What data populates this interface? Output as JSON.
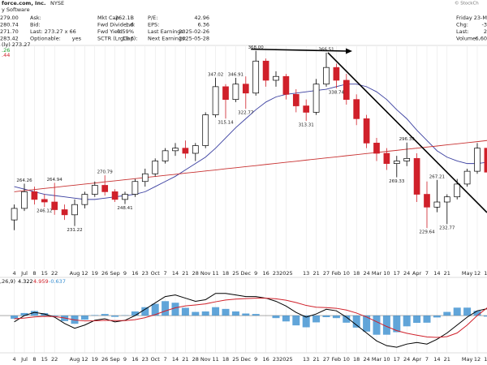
{
  "header": {
    "title": "force.com, Inc.",
    "exchange": "NYSE",
    "sector": "y Software",
    "copyright": "© StockCh",
    "rows": [
      [
        "279.00",
        "Ask:",
        "",
        "Mkt Cap:",
        "262.1B",
        "P/E:",
        "42.96",
        "Friday 23-Ma",
        ""
      ],
      [
        "280.74",
        "Bid:",
        "",
        "Fwd Dividend:",
        "1.6",
        "EPS:",
        "6.36",
        "Chg:",
        "-3"
      ],
      [
        "271.70",
        "Last: 273.27 x 66",
        "",
        "Fwd Yield:",
        "0.59%",
        "Last Earnings:",
        "2025-02-26",
        "Last:",
        "2"
      ],
      [
        "283.42",
        "Optionable:",
        "yes",
        "SCTR (LrgCap):",
        "18.6",
        "Next Earnings:",
        "2025-05-28",
        "Volume:",
        "6,60"
      ]
    ],
    "overlay_texts": [
      "(ly) 273.27",
      ".26",
      ".44"
    ]
  },
  "chart_data": [
    {
      "type": "candlestick",
      "categories": [
        "4",
        "Jul",
        "8",
        "15",
        "22",
        null,
        "Aug",
        "12",
        "19",
        "26",
        "Sep",
        "9",
        "16",
        "23",
        "Oct",
        "7",
        "14",
        "21",
        "28",
        "Nov",
        "11",
        "18",
        "25",
        "Dec",
        "9",
        "16",
        "23",
        "2025",
        null,
        "13",
        "21",
        "27",
        "Feb",
        "10",
        "18",
        "24",
        "Mar",
        "10",
        "17",
        "24",
        "Apr",
        "7",
        "14",
        "21",
        null,
        "May",
        "12",
        "19"
      ],
      "open": [
        236,
        245,
        258,
        252,
        250,
        244,
        240,
        248,
        256,
        263,
        258,
        252,
        256,
        266,
        272,
        282,
        290,
        292,
        288,
        294,
        318,
        340,
        330,
        342,
        335,
        360,
        345,
        348,
        334,
        325,
        320,
        342,
        355,
        345,
        330,
        315,
        296,
        288,
        280,
        282,
        284,
        256,
        246,
        250,
        254,
        264,
        274,
        292
      ],
      "high": [
        248,
        264.26,
        262,
        256,
        264.94,
        248,
        252,
        258,
        266,
        270.79,
        260,
        258,
        268,
        276,
        284,
        292,
        296,
        298,
        296,
        320,
        347.02,
        342,
        346.91,
        348,
        368,
        362,
        352,
        350,
        338,
        330,
        346,
        366.51,
        358,
        350,
        334,
        318,
        300,
        292,
        286,
        296.39,
        288,
        266,
        267.21,
        256,
        268,
        276,
        296,
        294
      ],
      "low": [
        228,
        243,
        248,
        246.12,
        240,
        236,
        231.22,
        245,
        254,
        255,
        250,
        248.41,
        254,
        262,
        270,
        280,
        286,
        284,
        282,
        292,
        316,
        315.14,
        328,
        322.77,
        333,
        340,
        340,
        330,
        320,
        313.31,
        318,
        340,
        338.74,
        326,
        310,
        292,
        282,
        275,
        269.33,
        278,
        250,
        229.64,
        242,
        232.77,
        252,
        262,
        272,
        270
      ],
      "close": [
        245,
        258,
        252,
        250,
        244,
        240,
        248,
        256,
        263,
        258,
        252,
        256,
        266,
        272,
        282,
        290,
        292,
        288,
        294,
        318,
        340,
        330,
        342,
        335,
        360,
        345,
        348,
        334,
        325,
        320,
        342,
        355,
        345,
        330,
        315,
        296,
        288,
        280,
        282,
        284,
        256,
        246,
        250,
        254,
        264,
        274,
        292,
        273.27
      ],
      "up_color": "#000000",
      "down_color": "#d0202a",
      "series": [
        {
          "color": "#3a3fa0",
          "values": [
            262,
            260,
            258,
            256,
            255,
            254,
            253,
            252,
            252,
            253,
            254,
            255,
            256,
            258,
            262,
            266,
            270,
            275,
            280,
            285,
            292,
            300,
            308,
            315,
            322,
            328,
            332,
            334,
            335,
            336,
            337,
            338,
            340,
            342,
            342,
            340,
            336,
            330,
            322,
            315,
            306,
            298,
            290,
            285,
            282,
            280,
            280,
            281
          ]
        },
        {
          "color": "#c83232",
          "values": [
            258,
            258.9,
            259.7,
            260.6,
            261.4,
            262.3,
            263.1,
            264,
            264.8,
            265.7,
            266.5,
            267.4,
            268.2,
            269.1,
            269.9,
            270.8,
            271.6,
            272.5,
            273.3,
            274.2,
            275,
            275.9,
            276.7,
            277.6,
            278.4,
            279.3,
            280.1,
            281,
            281.8,
            282.7,
            283.5,
            284.4,
            285.2,
            286.1,
            286.9,
            287.8,
            288.6,
            289.5,
            290.3,
            291.2,
            292,
            292.9,
            293.7,
            294.6,
            295.4,
            296.3,
            297.1,
            298
          ]
        }
      ],
      "annotations": [
        {
          "value": 264.26,
          "label": "264.26"
        },
        {
          "value": 246.12,
          "label": "246.12"
        },
        {
          "value": 264.94,
          "label": "264.94"
        },
        {
          "value": 231.22,
          "label": "231.22"
        },
        {
          "value": 270.79,
          "label": "270.79"
        },
        {
          "value": 248.41,
          "label": "248.41"
        },
        {
          "value": 347.02,
          "label": "347.02"
        },
        {
          "value": 315.14,
          "label": "315.14"
        },
        {
          "value": 346.91,
          "label": "346.91"
        },
        {
          "value": 322.77,
          "label": "322.77"
        },
        {
          "value": 368,
          "label": "368.00"
        },
        {
          "value": 313.31,
          "label": "313.31"
        },
        {
          "value": 366.51,
          "label": "366.51"
        },
        {
          "value": 338.74,
          "label": "338.74"
        },
        {
          "value": 269.33,
          "label": "269.33"
        },
        {
          "value": 296.39,
          "label": "296.39"
        },
        {
          "value": 229.64,
          "label": "229.64"
        },
        {
          "value": 267.21,
          "label": "267.21"
        },
        {
          "value": 232.77,
          "label": "232.77"
        }
      ],
      "ylim": [
        200,
        376
      ]
    },
    {
      "type": "macd",
      "label": ",26,9)",
      "value_texts": [
        "4.322",
        "4.959",
        "-0.637"
      ],
      "series": [
        {
          "color": "#000000",
          "values": [
            -4,
            0,
            2,
            1,
            -1,
            -5,
            -8,
            -6,
            -3,
            -2,
            -4,
            -3,
            0,
            4,
            8,
            12,
            13,
            11,
            9,
            10,
            14,
            14,
            13,
            12,
            12,
            11,
            9,
            6,
            2,
            -1,
            1,
            4,
            3,
            -1,
            -6,
            -11,
            -16,
            -19,
            -20,
            -18,
            -17,
            -18,
            -15,
            -11,
            -6,
            -1,
            3,
            4.322
          ]
        },
        {
          "color": "#d0202a",
          "values": [
            -2,
            -1.6,
            -0.9,
            -0.5,
            -0.6,
            -1.5,
            -2.8,
            -3.4,
            -3.3,
            -3,
            -3.2,
            -3.2,
            -2.6,
            -1.3,
            0.6,
            2.9,
            4.9,
            6.1,
            6.7,
            7.4,
            8.7,
            9.8,
            10.4,
            10.7,
            11,
            11,
            10.6,
            9.7,
            8.2,
            6.4,
            5.3,
            5,
            4.6,
            3.5,
            1.6,
            -0.9,
            -3.9,
            -6.9,
            -9.5,
            -11.2,
            -12.4,
            -13.5,
            -13.8,
            -13.3,
            -11,
            -6,
            0,
            4.959
          ]
        }
      ],
      "histogram": {
        "color": "#3a8fd0",
        "values": [
          -2,
          1.6,
          2.9,
          1.5,
          -0.4,
          -3.5,
          -5.2,
          -2.6,
          0.3,
          1,
          -0.8,
          0.2,
          2.6,
          5.3,
          7.4,
          9.1,
          8.1,
          4.9,
          2.3,
          2.6,
          5.3,
          4.2,
          2.6,
          1.3,
          1,
          0,
          -1.6,
          -3.7,
          -6.2,
          -7.4,
          -4.3,
          -1,
          -1.6,
          -4.5,
          -7.6,
          -10.1,
          -12.1,
          -12.1,
          -10.5,
          -6.8,
          -4.6,
          -4.5,
          -1.2,
          2.3,
          5,
          5,
          3,
          -0.637
        ]
      },
      "ylim": [
        -22,
        20
      ]
    }
  ]
}
